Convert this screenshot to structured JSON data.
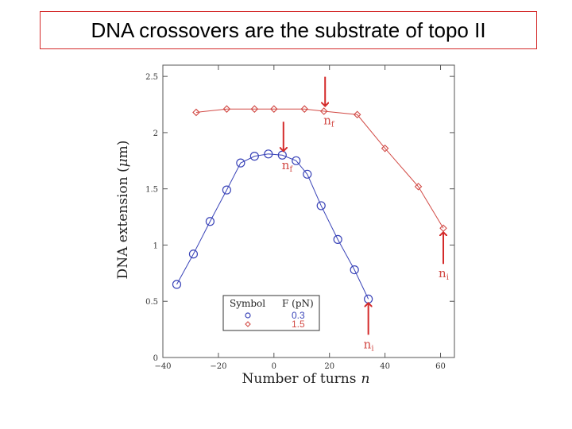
{
  "slide": {
    "title": "DNA crossovers are the substrate of topo II"
  },
  "chart_data": {
    "type": "scatter",
    "xlabel_text": "Number of turns",
    "xlabel_var": "n",
    "ylabel_text": "DNA extension (",
    "ylabel_mu": "μ",
    "ylabel_tail": "m)",
    "xlim": [
      -40,
      65
    ],
    "ylim": [
      0,
      2.6
    ],
    "xticks": [
      -40,
      -20,
      0,
      20,
      40,
      60
    ],
    "xtick_labels": [
      "−40",
      "−20",
      "0",
      "20",
      "40",
      "60"
    ],
    "yticks": [
      0,
      0.5,
      1,
      1.5,
      2,
      2.5
    ],
    "ytick_labels": [
      "0",
      "0.5",
      "1",
      "1.5",
      "2",
      "2.5"
    ],
    "grid": false,
    "legend": {
      "position": "bottom-left",
      "header_symbol": "Symbol",
      "header_force": "F (pN)",
      "entries": [
        {
          "marker": "circle",
          "label": "0.3"
        },
        {
          "marker": "diamond",
          "label": "1.5"
        }
      ]
    },
    "series": [
      {
        "force_pN": 0.3,
        "marker": "circle",
        "color": "#3a44b8",
        "x": [
          -35,
          -29,
          -23,
          -17,
          -12,
          -7,
          -2,
          3,
          8,
          12,
          17,
          23,
          29,
          34
        ],
        "y": [
          0.65,
          0.92,
          1.21,
          1.49,
          1.73,
          1.79,
          1.81,
          1.8,
          1.75,
          1.63,
          1.35,
          1.05,
          0.78,
          0.52
        ]
      },
      {
        "force_pN": 1.5,
        "marker": "diamond",
        "color": "#d24a45",
        "x": [
          -28,
          -17,
          -7,
          0,
          11,
          18,
          30,
          40,
          52,
          61
        ],
        "y": [
          2.18,
          2.21,
          2.21,
          2.21,
          2.21,
          2.19,
          2.16,
          1.86,
          1.52,
          1.15
        ]
      }
    ],
    "annotations": [
      {
        "label": "n",
        "subscript": "f",
        "color": "#d24a45",
        "arrow": "down",
        "x": 19,
        "y": 2.2
      },
      {
        "label": "n",
        "subscript": "f",
        "color": "#d24a45",
        "arrow": "down",
        "x": 4,
        "y": 1.8
      },
      {
        "label": "n",
        "subscript": "i",
        "color": "#d24a45",
        "arrow": "up",
        "x": 61,
        "y": 1.15
      },
      {
        "label": "n",
        "subscript": "i",
        "color": "#d24a45",
        "arrow": "up",
        "x": 34,
        "y": 0.52
      }
    ]
  }
}
